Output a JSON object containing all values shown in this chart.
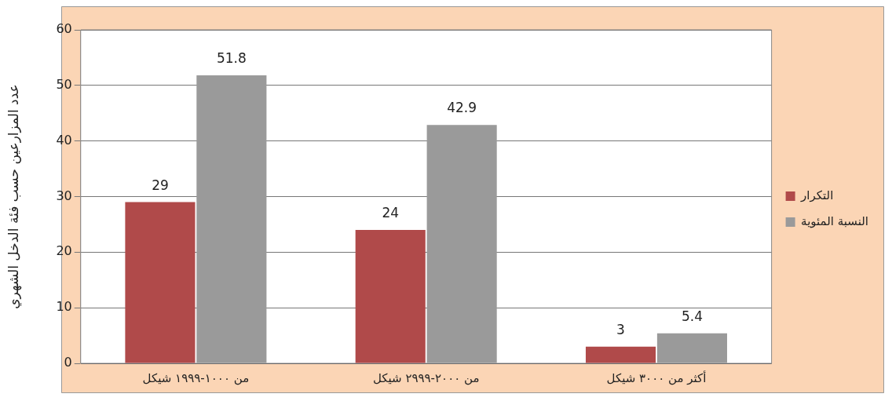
{
  "chart_data": {
    "type": "bar",
    "ylabel": "عدد المزارعين حسب فئة الدخل الشهري",
    "categories": [
      "من ١٠٠٠-١٩٩٩ شيكل",
      "من ٢٠٠٠-٢٩٩٩ شيكل",
      "أكثر من ٣٠٠٠ شيكل"
    ],
    "series": [
      {
        "name": "التكرار",
        "color": "#b04a4a",
        "values": [
          29,
          24,
          3
        ]
      },
      {
        "name": "النسبة المئوية",
        "color": "#9a9a9a",
        "values": [
          51.8,
          42.9,
          5.4
        ]
      }
    ],
    "ylim": [
      0,
      60
    ],
    "yticks": [
      0,
      10,
      20,
      30,
      40,
      50,
      60
    ],
    "grid": "y",
    "legend": "right",
    "data_labels": true
  }
}
